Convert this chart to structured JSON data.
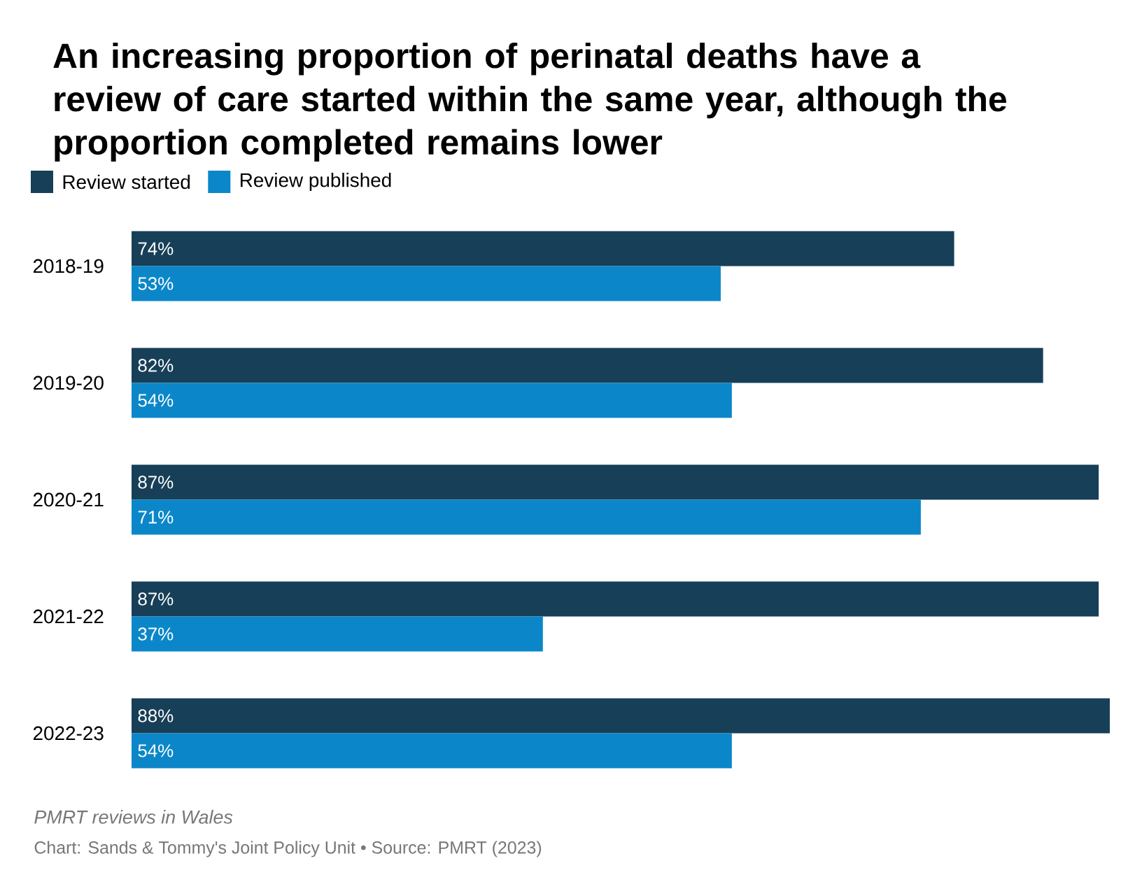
{
  "chart_data": {
    "type": "bar",
    "orientation": "horizontal",
    "title": "An increasing proportion of perinatal deaths have a review of care started within the same year, although the proportion completed remains lower",
    "categories": [
      "2018-19",
      "2019-20",
      "2020-21",
      "2021-22",
      "2022-23"
    ],
    "series": [
      {
        "name": "Review started",
        "color": "#173f58",
        "values": [
          74,
          82,
          87,
          87,
          88
        ],
        "value_labels": [
          "74%",
          "82%",
          "87%",
          "87%",
          "88%"
        ]
      },
      {
        "name": "Review published",
        "color": "#0b87c9",
        "values": [
          53,
          54,
          71,
          37,
          54
        ],
        "value_labels": [
          "53%",
          "54%",
          "71%",
          "37%",
          "54%"
        ]
      }
    ],
    "legend": "top left",
    "annotations": [
      "PMRT reviews in Wales",
      "Chart: Sands & Tommy's Joint Policy Unit • Source: PMRT (2023)"
    ]
  }
}
